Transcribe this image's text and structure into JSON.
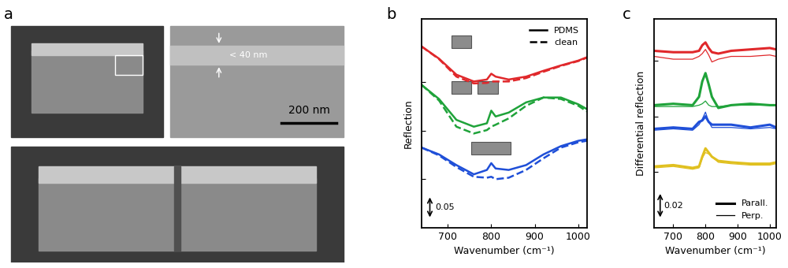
{
  "panel_labels": [
    "a",
    "b",
    "c"
  ],
  "images": {
    "annotations": [
      "< 40 nm",
      "200 nm"
    ]
  },
  "chart_data": [
    {
      "type": "line",
      "x_label": "Wavenumber (cm⁻¹)",
      "y_label": "Reflection",
      "x": [
        640,
        680,
        720,
        760,
        790,
        800,
        810,
        840,
        880,
        920,
        960,
        1000,
        1020
      ],
      "xlim": [
        640,
        1020
      ],
      "xticks": [
        700,
        800,
        900,
        1000
      ],
      "ylim": [
        0,
        0.43
      ],
      "yticks": [
        0.1,
        0.2,
        0.3
      ],
      "tick_labels": "x",
      "legend": "upper right",
      "scale_bar": 0.05,
      "series": [
        {
          "name": "PDMS",
          "color": "#e0282b",
          "line_style": "solid",
          "values": [
            0.373,
            0.348,
            0.315,
            0.301,
            0.305,
            0.317,
            0.311,
            0.305,
            0.311,
            0.323,
            0.334,
            0.344,
            0.351
          ]
        },
        {
          "name": "clean",
          "color": "#e0282b",
          "line_style": "dashed",
          "values": [
            0.373,
            0.347,
            0.311,
            0.297,
            0.298,
            0.301,
            0.301,
            0.301,
            0.308,
            0.321,
            0.333,
            0.343,
            0.35
          ]
        },
        {
          "name": "PDMS",
          "color": "#1fa33a",
          "line_style": "solid",
          "values": [
            0.294,
            0.265,
            0.222,
            0.208,
            0.215,
            0.241,
            0.229,
            0.237,
            0.258,
            0.268,
            0.268,
            0.254,
            0.244
          ]
        },
        {
          "name": "clean",
          "color": "#1fa33a",
          "line_style": "dashed",
          "values": [
            0.294,
            0.262,
            0.208,
            0.194,
            0.201,
            0.208,
            0.212,
            0.225,
            0.251,
            0.268,
            0.265,
            0.251,
            0.239
          ]
        },
        {
          "name": "PDMS",
          "color": "#1f4fd8",
          "line_style": "solid",
          "values": [
            0.165,
            0.151,
            0.129,
            0.11,
            0.119,
            0.133,
            0.122,
            0.119,
            0.129,
            0.151,
            0.168,
            0.179,
            0.182
          ]
        },
        {
          "name": "clean",
          "color": "#1f4fd8",
          "line_style": "dashed",
          "values": [
            0.165,
            0.149,
            0.125,
            0.105,
            0.103,
            0.105,
            0.1,
            0.103,
            0.119,
            0.143,
            0.165,
            0.176,
            0.179
          ]
        }
      ]
    },
    {
      "type": "line",
      "x_label": "Wavenumber (cm⁻¹)",
      "y_label": "Differential reflection",
      "x": [
        640,
        700,
        760,
        780,
        790,
        800,
        810,
        820,
        840,
        880,
        940,
        1000,
        1020
      ],
      "xlim": [
        640,
        1020
      ],
      "xticks": [
        700,
        800,
        900,
        1000
      ],
      "ylim": [
        0,
        0.15
      ],
      "yticks": [
        0.04,
        0.08,
        0.12
      ],
      "tick_labels": "x",
      "legend": "lower right",
      "scale_bar": 0.02,
      "series": [
        {
          "name": "Parall.",
          "color": "#e0282b",
          "line_style": "thick",
          "values": [
            0.127,
            0.126,
            0.126,
            0.127,
            0.131,
            0.133,
            0.129,
            0.126,
            0.125,
            0.127,
            0.128,
            0.129,
            0.128
          ]
        },
        {
          "name": "Perp.",
          "color": "#e0282b",
          "line_style": "thin",
          "values": [
            0.123,
            0.121,
            0.121,
            0.123,
            0.125,
            0.128,
            0.124,
            0.119,
            0.121,
            0.123,
            0.123,
            0.124,
            0.123
          ]
        },
        {
          "name": "Parall.",
          "color": "#1fa33a",
          "line_style": "thick",
          "values": [
            0.088,
            0.089,
            0.088,
            0.094,
            0.105,
            0.111,
            0.103,
            0.094,
            0.086,
            0.088,
            0.089,
            0.088,
            0.088
          ]
        },
        {
          "name": "Perp.",
          "color": "#1fa33a",
          "line_style": "thin",
          "values": [
            0.087,
            0.087,
            0.087,
            0.088,
            0.089,
            0.091,
            0.088,
            0.087,
            0.087,
            0.088,
            0.088,
            0.088,
            0.088
          ]
        },
        {
          "name": "Parall.",
          "color": "#1f4fd8",
          "line_style": "thick",
          "values": [
            0.071,
            0.072,
            0.071,
            0.076,
            0.077,
            0.08,
            0.076,
            0.074,
            0.074,
            0.074,
            0.072,
            0.074,
            0.072
          ]
        },
        {
          "name": "Perp.",
          "color": "#1f4fd8",
          "line_style": "thin",
          "values": [
            0.07,
            0.071,
            0.07,
            0.074,
            0.078,
            0.083,
            0.076,
            0.072,
            0.072,
            0.072,
            0.071,
            0.072,
            0.071
          ]
        },
        {
          "name": "Parall.",
          "color": "#e0c020",
          "line_style": "thick",
          "values": [
            0.044,
            0.045,
            0.043,
            0.044,
            0.051,
            0.057,
            0.054,
            0.051,
            0.048,
            0.047,
            0.046,
            0.046,
            0.047
          ]
        },
        {
          "name": "Perp.",
          "color": "#e0c020",
          "line_style": "thin",
          "values": [
            0.043,
            0.044,
            0.042,
            0.043,
            0.05,
            0.054,
            0.053,
            0.051,
            0.047,
            0.046,
            0.045,
            0.045,
            0.046
          ]
        }
      ]
    }
  ]
}
